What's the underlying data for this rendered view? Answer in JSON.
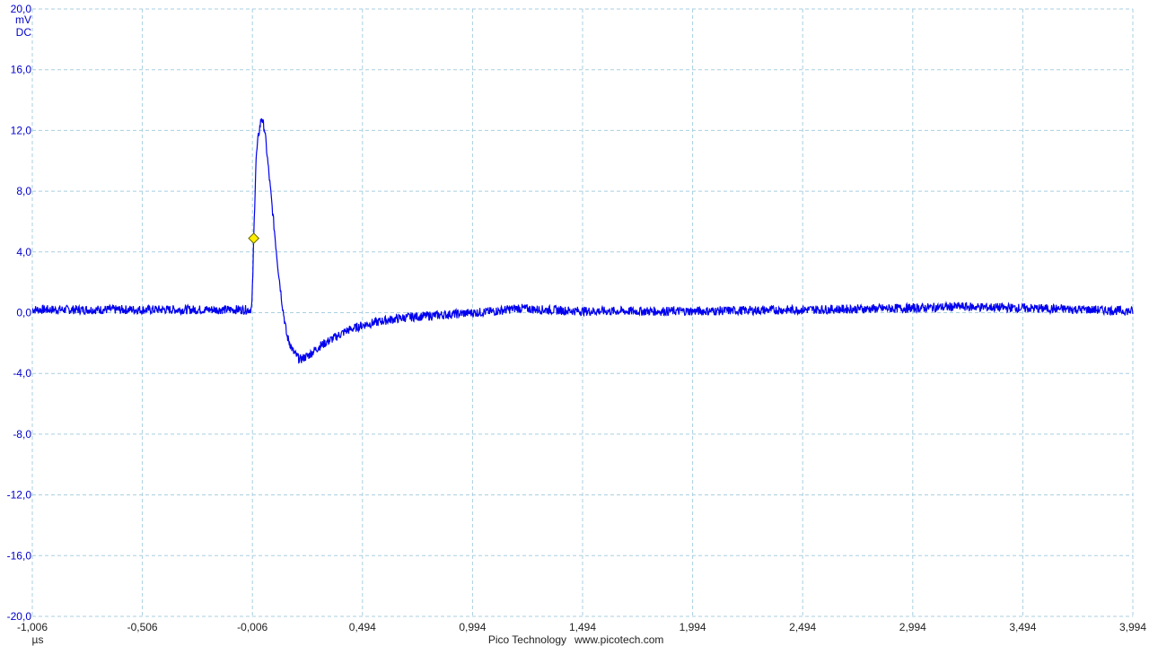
{
  "chart_data": {
    "type": "line",
    "title": "",
    "y_unit": "mV",
    "y_coupling": "DC",
    "x_unit": "µs",
    "xlim": [
      -1.006,
      3.994
    ],
    "ylim": [
      -20.0,
      20.0
    ],
    "x_ticks": [
      -1.006,
      -0.506,
      -0.006,
      0.494,
      0.994,
      1.494,
      1.994,
      2.494,
      2.994,
      3.494,
      3.994
    ],
    "x_tick_labels": [
      "-1,006",
      "-0,506",
      "-0,006",
      "0,494",
      "0,994",
      "1,494",
      "1,994",
      "2,494",
      "2,994",
      "3,494",
      "3,994"
    ],
    "y_ticks": [
      20.0,
      16.0,
      12.0,
      8.0,
      4.0,
      0.0,
      -4.0,
      -8.0,
      -12.0,
      -16.0,
      -20.0
    ],
    "y_tick_labels": [
      "20,0",
      "16,0",
      "12,0",
      "8,0",
      "4,0",
      "0,0",
      "-4,0",
      "-8,0",
      "-12,0",
      "-16,0",
      "-20,0"
    ],
    "grid": true,
    "series": [
      {
        "color": "#0000ee",
        "noise_amplitude": 0.3,
        "x": [
          -1.006,
          -0.8,
          -0.6,
          -0.4,
          -0.2,
          -0.02,
          -0.009,
          -0.005,
          0.0,
          0.01,
          0.02,
          0.035,
          0.05,
          0.07,
          0.09,
          0.11,
          0.13,
          0.15,
          0.18,
          0.21,
          0.25,
          0.3,
          0.36,
          0.42,
          0.5,
          0.6,
          0.7,
          0.8,
          0.9,
          1.0,
          1.1,
          1.2,
          1.3,
          1.5,
          1.7,
          2.0,
          2.5,
          3.0,
          3.2,
          3.5,
          3.8,
          3.994
        ],
        "y": [
          0.2,
          0.2,
          0.2,
          0.2,
          0.2,
          0.2,
          0.3,
          2.0,
          4.9,
          10.0,
          11.5,
          12.9,
          12.0,
          9.0,
          6.0,
          3.0,
          0.5,
          -1.5,
          -2.6,
          -3.1,
          -2.8,
          -2.2,
          -1.7,
          -1.2,
          -0.8,
          -0.5,
          -0.3,
          -0.2,
          -0.1,
          0.0,
          0.1,
          0.3,
          0.2,
          0.1,
          0.1,
          0.1,
          0.2,
          0.3,
          0.4,
          0.3,
          0.2,
          0.1
        ]
      }
    ],
    "trigger_marker": {
      "x": 0.0,
      "y": 4.9,
      "color": "#ffee00"
    }
  },
  "footer": {
    "brand": "Pico Technology",
    "url": "www.picotech.com"
  }
}
